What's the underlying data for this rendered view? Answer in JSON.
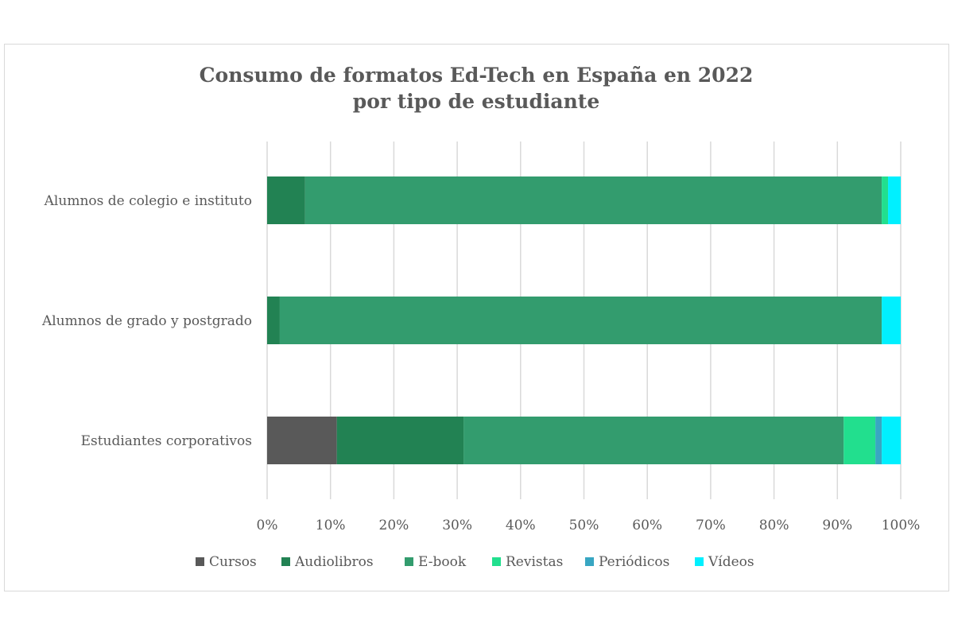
{
  "chart_data": {
    "type": "bar",
    "orientation": "horizontal",
    "stacked": "percent",
    "title": "Consumo de formatos Ed-Tech en España en 2022",
    "subtitle": "por tipo de estudiante",
    "categories": [
      "Alumnos de colegio e instituto",
      "Alumnos de grado y postgrado",
      "Estudiantes corporativos"
    ],
    "series": [
      {
        "name": "Cursos",
        "color": "#595959",
        "values": [
          0,
          0,
          11
        ]
      },
      {
        "name": "Audiolibros",
        "color": "#228253",
        "values": [
          6,
          2,
          20
        ]
      },
      {
        "name": "E-book",
        "color": "#339c6e",
        "values": [
          91,
          95,
          60
        ]
      },
      {
        "name": "Revistas",
        "color": "#22df8e",
        "values": [
          1,
          0,
          5
        ]
      },
      {
        "name": "Periódicos",
        "color": "#38a6c2",
        "values": [
          0,
          0,
          1
        ]
      },
      {
        "name": "Vídeos",
        "color": "#00f0ff",
        "values": [
          2,
          3,
          3
        ]
      }
    ],
    "xlim": [
      0,
      100
    ],
    "xticks": [
      "0%",
      "10%",
      "20%",
      "30%",
      "40%",
      "50%",
      "60%",
      "70%",
      "80%",
      "90%",
      "100%"
    ],
    "grid": true,
    "legend": "bottom"
  }
}
